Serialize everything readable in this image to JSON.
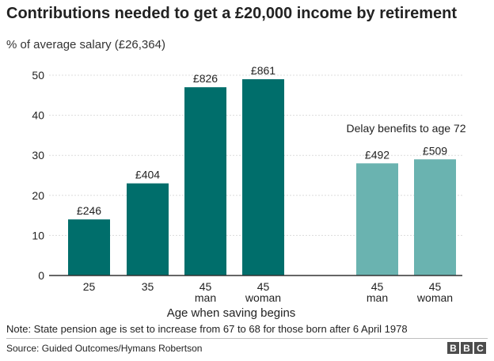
{
  "title": "Contributions needed to get a £20,000 income by retirement",
  "subtitle": "% of average salary (£26,364)",
  "note": "Note: State pension age is set to increase from 67 to 68 for those born after 6 April 1978",
  "source": "Source:  Guided Outcomes/Hymans Robertson",
  "logo_letters": [
    "B",
    "B",
    "C"
  ],
  "chart_data": {
    "type": "bar",
    "xlabel": "Age when saving begins",
    "ylabel": "",
    "ylim": [
      0,
      50
    ],
    "yticks": [
      0,
      10,
      20,
      30,
      40,
      50
    ],
    "grid": true,
    "categories": [
      {
        "line1": "25",
        "line2": ""
      },
      {
        "line1": "35",
        "line2": ""
      },
      {
        "line1": "45",
        "line2": "man"
      },
      {
        "line1": "45",
        "line2": "woman"
      },
      {
        "line1": "45",
        "line2": "man"
      },
      {
        "line1": "45",
        "line2": "woman"
      }
    ],
    "values": [
      14,
      23,
      47,
      49,
      28,
      29
    ],
    "data_labels": [
      "£246",
      "£404",
      "£826",
      "£861",
      "£492",
      "£509"
    ],
    "groups": [
      {
        "label": "",
        "indices": [
          0,
          1,
          2,
          3
        ],
        "color": "#006e6b"
      },
      {
        "label": "Delay benefits to age 72",
        "indices": [
          4,
          5
        ],
        "color": "#6ab3b0"
      }
    ]
  }
}
